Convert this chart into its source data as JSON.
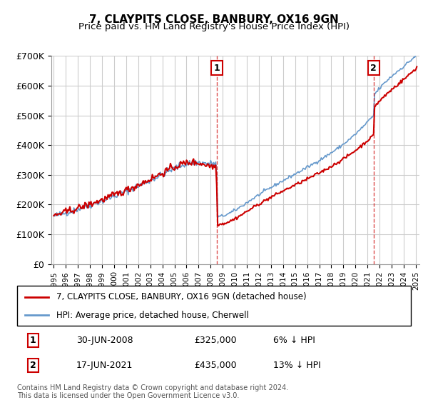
{
  "title": "7, CLAYPITS CLOSE, BANBURY, OX16 9GN",
  "subtitle": "Price paid vs. HM Land Registry's House Price Index (HPI)",
  "ylabel": "",
  "xlabel": "",
  "ylim": [
    0,
    700000
  ],
  "yticks": [
    0,
    100000,
    200000,
    300000,
    400000,
    500000,
    600000,
    700000
  ],
  "ytick_labels": [
    "£0",
    "£100K",
    "£200K",
    "£300K",
    "£400K",
    "£500K",
    "£600K",
    "£700K"
  ],
  "x_start_year": 1995,
  "x_end_year": 2025,
  "sale1_year": 2008.5,
  "sale1_label": "1",
  "sale1_date": "30-JUN-2008",
  "sale1_price": "£325,000",
  "sale1_hpi": "6% ↓ HPI",
  "sale2_year": 2021.5,
  "sale2_label": "2",
  "sale2_date": "17-JUN-2021",
  "sale2_price": "£435,000",
  "sale2_hpi": "13% ↓ HPI",
  "legend_line1": "7, CLAYPITS CLOSE, BANBURY, OX16 9GN (detached house)",
  "legend_line2": "HPI: Average price, detached house, Cherwell",
  "footnote": "Contains HM Land Registry data © Crown copyright and database right 2024.\nThis data is licensed under the Open Government Licence v3.0.",
  "line_color_red": "#cc0000",
  "line_color_blue": "#6699cc",
  "marker_box_color": "#cc0000",
  "grid_color": "#cccccc",
  "background_color": "#ffffff"
}
